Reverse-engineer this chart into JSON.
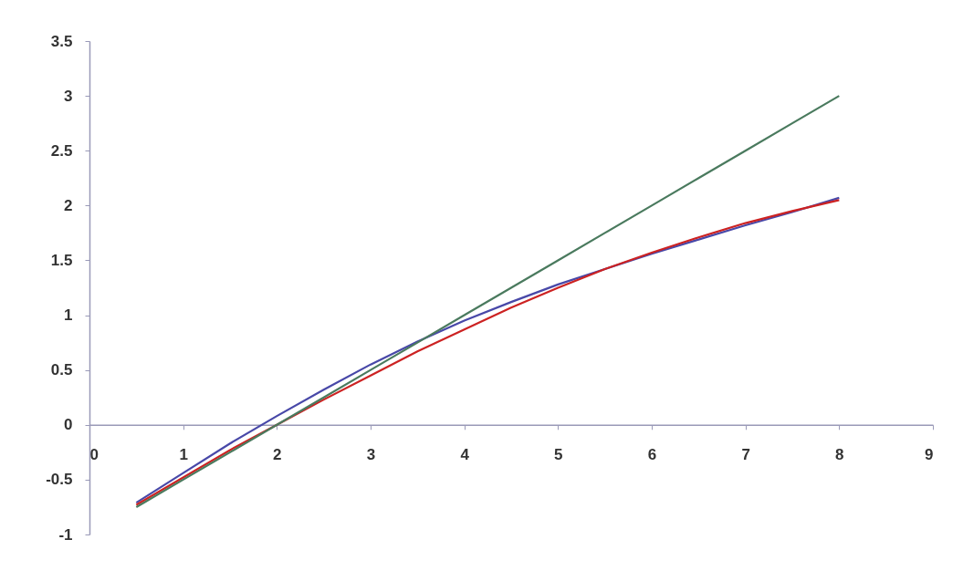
{
  "chart_data": {
    "type": "line",
    "x": [
      0.5,
      1,
      1.5,
      2,
      2.5,
      3,
      3.5,
      4,
      4.5,
      5,
      5.5,
      6,
      6.5,
      7,
      7.5,
      8
    ],
    "series": [
      {
        "color": "#4848a8",
        "values": [
          -0.71,
          -0.44,
          -0.17,
          0.08,
          0.32,
          0.55,
          0.76,
          0.95,
          1.12,
          1.28,
          1.42,
          1.56,
          1.69,
          1.82,
          1.94,
          2.07
        ]
      },
      {
        "color": "#cc2222",
        "values": [
          -0.73,
          -0.48,
          -0.23,
          0.0,
          0.23,
          0.45,
          0.67,
          0.87,
          1.07,
          1.25,
          1.42,
          1.57,
          1.71,
          1.84,
          1.95,
          2.05
        ]
      },
      {
        "color": "#4a7a5e",
        "values": [
          -0.75,
          -0.5,
          -0.25,
          0,
          0.25,
          0.5,
          0.75,
          1,
          1.25,
          1.5,
          1.75,
          2,
          2.25,
          2.5,
          2.75,
          3
        ]
      }
    ],
    "xlim": [
      0,
      9
    ],
    "xticks": [
      0,
      1,
      2,
      3,
      4,
      5,
      6,
      7,
      8,
      9
    ],
    "ylim": [
      -1,
      3.5
    ],
    "yticks": [
      -1,
      -0.5,
      0,
      0.5,
      1,
      1.5,
      2,
      2.5,
      3,
      3.5
    ],
    "grid": false,
    "legend": false,
    "marker": "none",
    "line_style": "solid"
  }
}
